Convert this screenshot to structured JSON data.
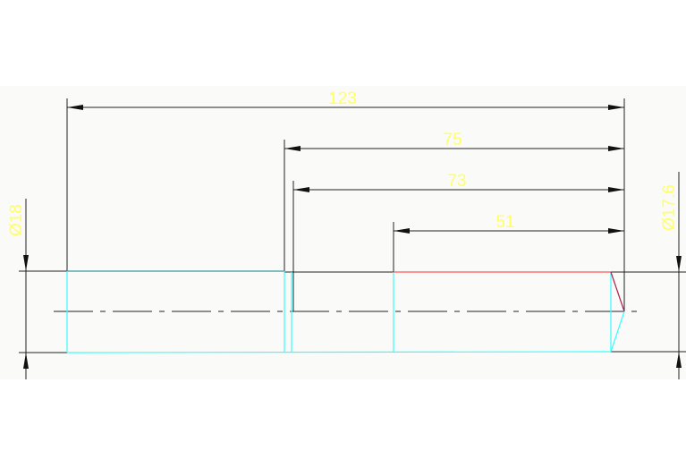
{
  "colors": {
    "dimension_line": "#222222",
    "dimension_text": "#ffff66",
    "outline": "#33ffff",
    "highlight_edge": "#ff5555",
    "chamfer": "#aa2255",
    "centerline": "#222222"
  },
  "dimensions": {
    "overall_length": "123",
    "length_75": "75",
    "length_73": "73",
    "length_51": "51",
    "left_diameter": "Ø18",
    "right_diameter": "Ø17.6"
  }
}
